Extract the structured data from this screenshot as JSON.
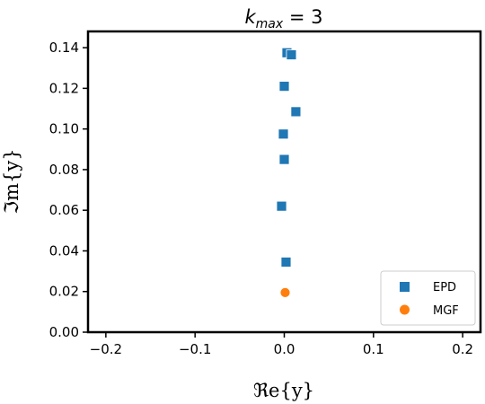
{
  "chart_data": {
    "type": "scatter",
    "title_main": "k",
    "title_sub": "max",
    "title_rest": " =  3",
    "xlabel": "ℜe{y}",
    "ylabel": "ℑm{y}",
    "xlim": [
      -0.22,
      0.22
    ],
    "ylim": [
      0.0,
      0.148
    ],
    "xticks": [
      -0.2,
      -0.1,
      0.0,
      0.1,
      0.2
    ],
    "xtick_labels": [
      "−0.2",
      "−0.1",
      "0.0",
      "0.1",
      "0.2"
    ],
    "yticks": [
      0.0,
      0.02,
      0.04,
      0.06,
      0.08,
      0.1,
      0.12,
      0.14
    ],
    "ytick_labels": [
      "0.00",
      "0.02",
      "0.04",
      "0.06",
      "0.08",
      "0.10",
      "0.12",
      "0.14"
    ],
    "grid": false,
    "legend_position": "lower-right",
    "series": [
      {
        "name": "EPD",
        "marker": "square",
        "color": "#1f77b4",
        "points": [
          {
            "x": 0.003,
            "y": 0.1375
          },
          {
            "x": 0.008,
            "y": 0.1365
          },
          {
            "x": 0.0,
            "y": 0.121
          },
          {
            "x": 0.013,
            "y": 0.1085
          },
          {
            "x": -0.001,
            "y": 0.0975
          },
          {
            "x": 0.0,
            "y": 0.085
          },
          {
            "x": -0.003,
            "y": 0.062
          },
          {
            "x": 0.002,
            "y": 0.0345
          }
        ]
      },
      {
        "name": "MGF",
        "marker": "circle",
        "color": "#ff7f0e",
        "points": [
          {
            "x": 0.001,
            "y": 0.0195
          }
        ]
      }
    ]
  }
}
